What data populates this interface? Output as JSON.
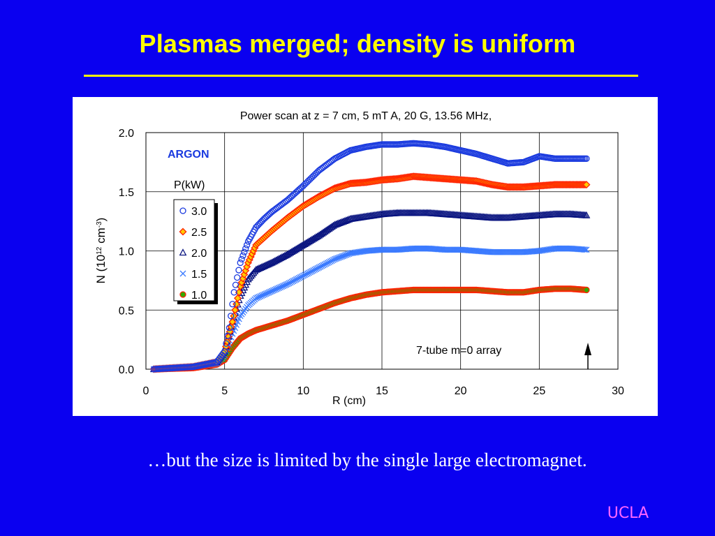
{
  "slide": {
    "title": "Plasmas merged; density is uniform",
    "caption": "…but the size is limited by the single large electromagnet.",
    "logo": "UCLA"
  },
  "colors": {
    "background": "#0a00f0",
    "title": "#ffff00",
    "logo": "#ff66ff"
  },
  "chart_data": {
    "type": "scatter",
    "title": "Power scan at z = 7 cm, 5 mT A, 20 G, 13.56 MHz,",
    "xlabel": "R (cm)",
    "ylabel_main": "N (10",
    "ylabel_sup1": "12",
    "ylabel_mid": " cm",
    "ylabel_sup2": "-3",
    "ylabel_end": ")",
    "xlim": [
      0,
      30
    ],
    "ylim": [
      0,
      2
    ],
    "xticks": [
      "0",
      "5",
      "10",
      "15",
      "20",
      "25",
      "30"
    ],
    "yticks": [
      "0.0",
      "0.5",
      "1.0",
      "1.5",
      "2.0"
    ],
    "grid": "vertical and horizontal",
    "gas_label": "ARGON",
    "legend_title": "P(kW)",
    "annotation": "7-tube m=0 array",
    "series": [
      {
        "name": "3.0",
        "marker": "circle",
        "color": "#1a3adf",
        "points": [
          [
            0.5,
            0
          ],
          [
            3,
            0.02
          ],
          [
            4.5,
            0.06
          ],
          [
            5,
            0.15
          ],
          [
            5.3,
            0.35
          ],
          [
            5.6,
            0.65
          ],
          [
            6,
            0.9
          ],
          [
            6.5,
            1.08
          ],
          [
            7,
            1.2
          ],
          [
            7.5,
            1.27
          ],
          [
            8,
            1.33
          ],
          [
            9,
            1.43
          ],
          [
            10,
            1.55
          ],
          [
            11,
            1.68
          ],
          [
            12,
            1.78
          ],
          [
            13,
            1.85
          ],
          [
            14,
            1.88
          ],
          [
            15,
            1.9
          ],
          [
            16,
            1.9
          ],
          [
            17,
            1.91
          ],
          [
            18,
            1.9
          ],
          [
            19,
            1.88
          ],
          [
            20,
            1.85
          ],
          [
            21,
            1.82
          ],
          [
            22,
            1.78
          ],
          [
            23,
            1.74
          ],
          [
            24,
            1.75
          ],
          [
            25,
            1.8
          ],
          [
            26,
            1.78
          ],
          [
            27,
            1.78
          ],
          [
            28,
            1.78
          ]
        ]
      },
      {
        "name": "2.5",
        "marker": "diamond",
        "color": "#ff2200",
        "fill": "#ffcc00",
        "points": [
          [
            0.5,
            0
          ],
          [
            3,
            0.02
          ],
          [
            4.5,
            0.06
          ],
          [
            5,
            0.15
          ],
          [
            5.5,
            0.4
          ],
          [
            6,
            0.7
          ],
          [
            6.5,
            0.9
          ],
          [
            7,
            1.05
          ],
          [
            8,
            1.17
          ],
          [
            9,
            1.28
          ],
          [
            10,
            1.38
          ],
          [
            11,
            1.46
          ],
          [
            12,
            1.53
          ],
          [
            13,
            1.57
          ],
          [
            14,
            1.58
          ],
          [
            15,
            1.6
          ],
          [
            16,
            1.61
          ],
          [
            17,
            1.63
          ],
          [
            18,
            1.62
          ],
          [
            19,
            1.61
          ],
          [
            20,
            1.6
          ],
          [
            21,
            1.59
          ],
          [
            22,
            1.56
          ],
          [
            23,
            1.54
          ],
          [
            24,
            1.54
          ],
          [
            25,
            1.55
          ],
          [
            26,
            1.56
          ],
          [
            27,
            1.56
          ],
          [
            28,
            1.56
          ]
        ]
      },
      {
        "name": "2.0",
        "marker": "triangle",
        "color": "#0a1580",
        "points": [
          [
            0.5,
            0
          ],
          [
            3,
            0.02
          ],
          [
            4.5,
            0.06
          ],
          [
            5,
            0.15
          ],
          [
            5.5,
            0.4
          ],
          [
            6,
            0.62
          ],
          [
            6.5,
            0.76
          ],
          [
            7,
            0.84
          ],
          [
            8,
            0.9
          ],
          [
            9,
            0.97
          ],
          [
            10,
            1.05
          ],
          [
            11,
            1.13
          ],
          [
            12,
            1.22
          ],
          [
            13,
            1.27
          ],
          [
            14,
            1.29
          ],
          [
            15,
            1.31
          ],
          [
            16,
            1.32
          ],
          [
            17,
            1.32
          ],
          [
            18,
            1.32
          ],
          [
            19,
            1.31
          ],
          [
            20,
            1.3
          ],
          [
            21,
            1.29
          ],
          [
            22,
            1.28
          ],
          [
            23,
            1.28
          ],
          [
            24,
            1.29
          ],
          [
            25,
            1.3
          ],
          [
            26,
            1.31
          ],
          [
            27,
            1.31
          ],
          [
            28,
            1.3
          ]
        ]
      },
      {
        "name": "1.5",
        "marker": "cross",
        "color": "#3a7aff",
        "points": [
          [
            0.5,
            0
          ],
          [
            3,
            0.02
          ],
          [
            4.5,
            0.05
          ],
          [
            5,
            0.12
          ],
          [
            5.5,
            0.3
          ],
          [
            6,
            0.45
          ],
          [
            6.5,
            0.54
          ],
          [
            7,
            0.6
          ],
          [
            8,
            0.66
          ],
          [
            9,
            0.72
          ],
          [
            10,
            0.79
          ],
          [
            11,
            0.86
          ],
          [
            12,
            0.93
          ],
          [
            13,
            0.98
          ],
          [
            14,
            1.0
          ],
          [
            15,
            1.01
          ],
          [
            16,
            1.01
          ],
          [
            17,
            1.02
          ],
          [
            18,
            1.02
          ],
          [
            19,
            1.01
          ],
          [
            20,
            1.01
          ],
          [
            21,
            1.0
          ],
          [
            22,
            0.99
          ],
          [
            23,
            0.99
          ],
          [
            24,
            0.99
          ],
          [
            25,
            1.0
          ],
          [
            26,
            1.02
          ],
          [
            27,
            1.02
          ],
          [
            28,
            1.01
          ]
        ]
      },
      {
        "name": "1.0",
        "marker": "circle-filled",
        "color": "#ff2200",
        "fill": "#33aa00",
        "points": [
          [
            0.5,
            0
          ],
          [
            3,
            0.01
          ],
          [
            4.5,
            0.04
          ],
          [
            5,
            0.08
          ],
          [
            5.5,
            0.18
          ],
          [
            6,
            0.26
          ],
          [
            6.5,
            0.3
          ],
          [
            7,
            0.33
          ],
          [
            8,
            0.37
          ],
          [
            9,
            0.41
          ],
          [
            10,
            0.46
          ],
          [
            11,
            0.51
          ],
          [
            12,
            0.56
          ],
          [
            13,
            0.6
          ],
          [
            14,
            0.63
          ],
          [
            15,
            0.65
          ],
          [
            16,
            0.66
          ],
          [
            17,
            0.67
          ],
          [
            18,
            0.67
          ],
          [
            19,
            0.67
          ],
          [
            20,
            0.67
          ],
          [
            21,
            0.67
          ],
          [
            22,
            0.66
          ],
          [
            23,
            0.65
          ],
          [
            24,
            0.65
          ],
          [
            25,
            0.67
          ],
          [
            26,
            0.68
          ],
          [
            27,
            0.68
          ],
          [
            28,
            0.67
          ]
        ]
      }
    ]
  }
}
